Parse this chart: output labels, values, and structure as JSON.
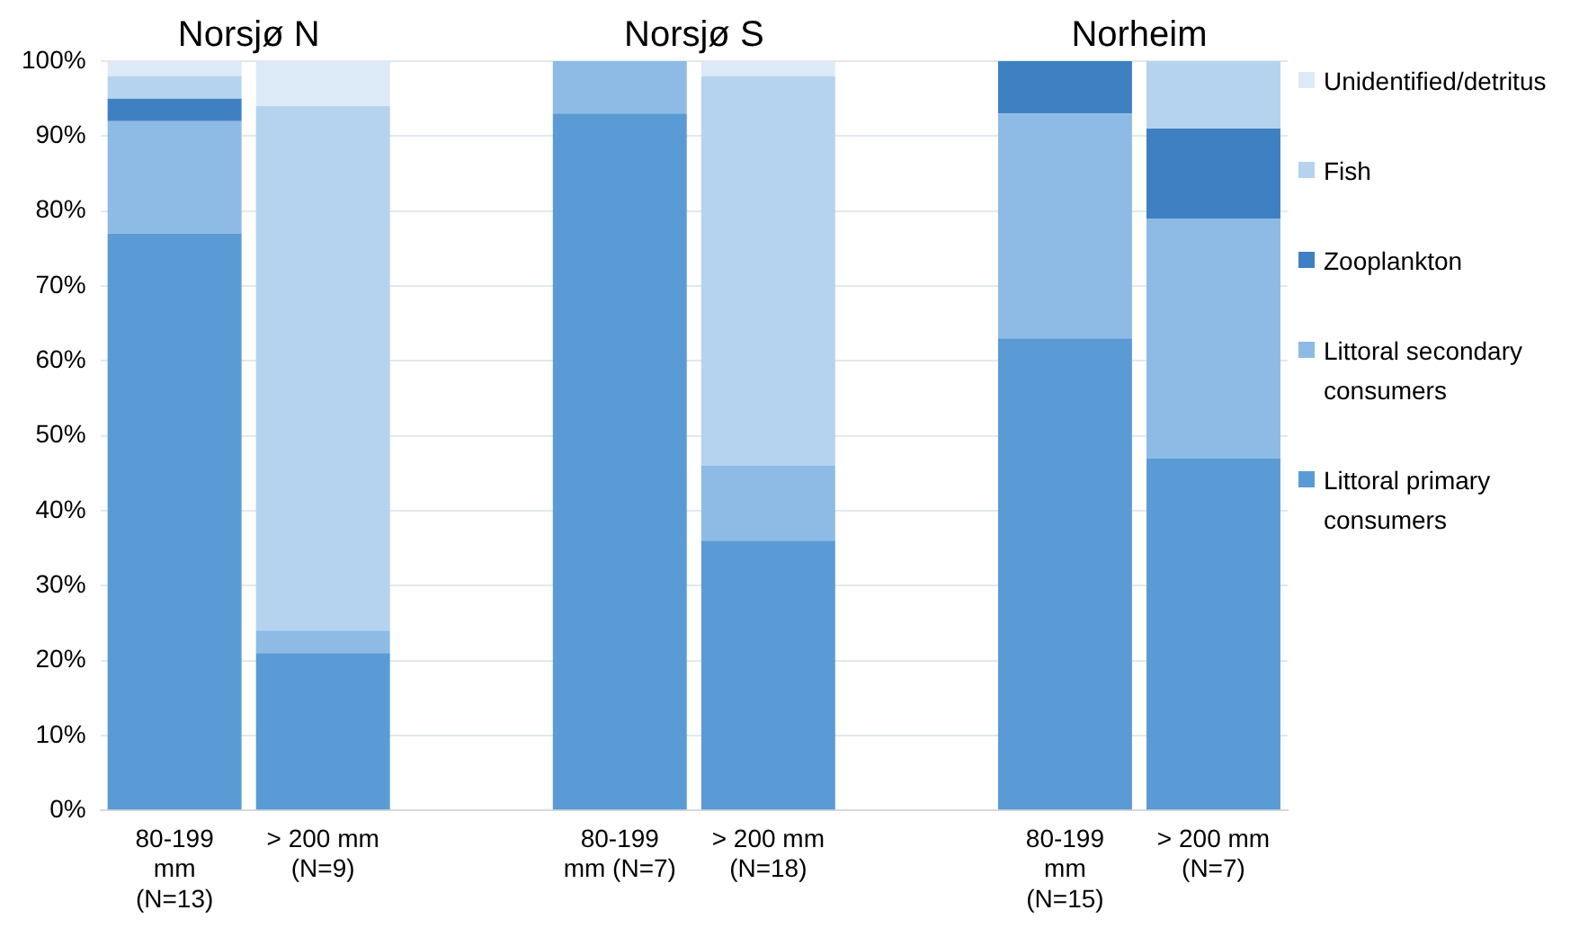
{
  "chart_data": {
    "type": "bar",
    "stacked": true,
    "categories": [
      "80-199 mm (N=13)",
      "> 200 mm (N=9)",
      null,
      "80-199 mm (N=7)",
      "> 200 mm (N=18)",
      null,
      "80-199 mm (N=15)",
      "> 200 mm (N=7)"
    ],
    "series": [
      {
        "name": "Littoral primary consumers",
        "color": "#5b9bd5",
        "values": [
          77,
          21,
          null,
          93,
          36,
          null,
          63,
          47
        ]
      },
      {
        "name": "Littoral secondary consumers",
        "color": "#8dbbe6",
        "values": [
          15,
          3,
          null,
          7,
          10,
          null,
          30,
          32
        ]
      },
      {
        "name": "Zooplankton",
        "color": "#3f80c2",
        "values": [
          3,
          0,
          null,
          0,
          0,
          null,
          7,
          12
        ]
      },
      {
        "name": "Fish",
        "color": "#b5d3ef",
        "values": [
          3,
          70,
          null,
          0,
          52,
          null,
          0,
          9
        ]
      },
      {
        "name": "Unidentified/detritus",
        "color": "#dceaf8",
        "values": [
          2,
          6,
          null,
          0,
          2,
          null,
          0,
          0
        ]
      }
    ],
    "ylim": [
      0,
      100
    ],
    "yticks": [
      {
        "value": 0,
        "label": "0%"
      },
      {
        "value": 10,
        "label": "10%"
      },
      {
        "value": 20,
        "label": "20%"
      },
      {
        "value": 30,
        "label": "30%"
      },
      {
        "value": 40,
        "label": "40%"
      },
      {
        "value": 50,
        "label": "50%"
      },
      {
        "value": 60,
        "label": "60%"
      },
      {
        "value": 70,
        "label": "70%"
      },
      {
        "value": 80,
        "label": "80%"
      },
      {
        "value": 90,
        "label": "90%"
      },
      {
        "value": 100,
        "label": "100%"
      }
    ],
    "grid": "y",
    "legend": "right",
    "annotations": [
      "Norsjø N",
      "Norsjø S",
      "Norheim"
    ]
  }
}
